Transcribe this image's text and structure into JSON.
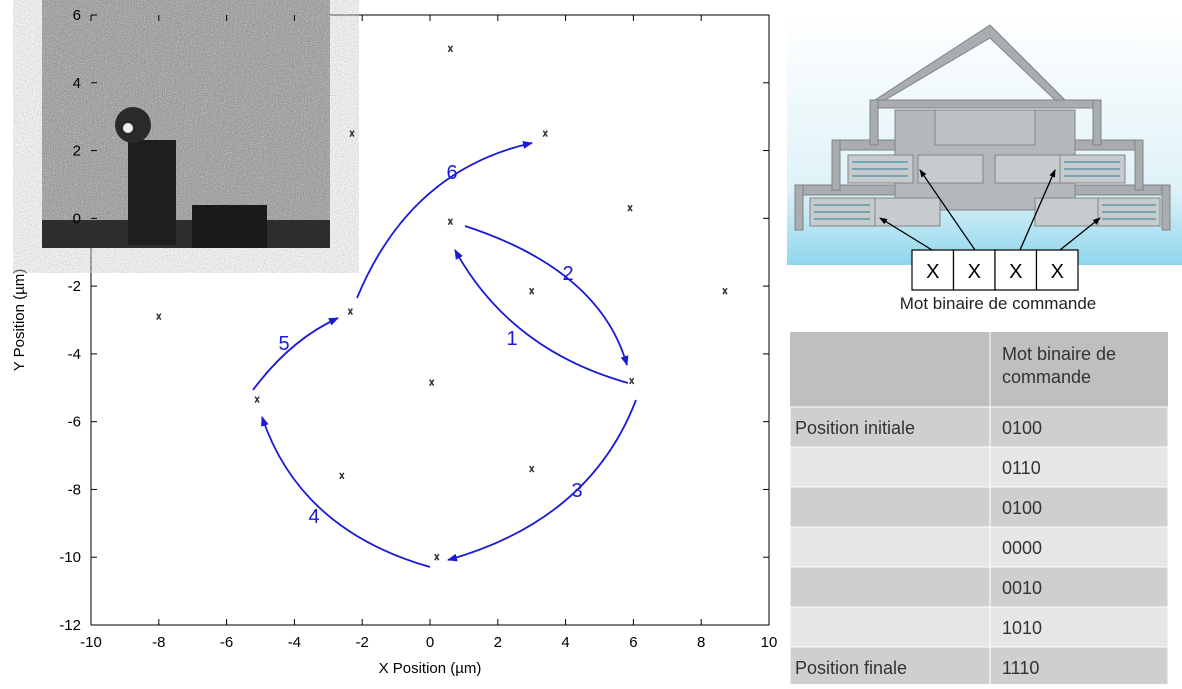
{
  "chart_data": {
    "type": "scatter",
    "xlabel": "X Position (µm)",
    "ylabel": "Y Position (µm)",
    "x": [
      0.6,
      -2.3,
      3.4,
      0.6,
      5.9,
      8.7,
      3.0,
      -8.0,
      -2.35,
      5.95,
      0.05,
      -5.1,
      -2.6,
      3.0,
      0.2
    ],
    "values": [
      5.0,
      2.5,
      2.5,
      -0.1,
      0.3,
      -2.15,
      -2.15,
      -2.9,
      -2.75,
      -4.8,
      -4.85,
      -5.35,
      -7.6,
      -7.4,
      -10.0
    ],
    "color": "#333333",
    "xlim": [
      -10,
      10
    ],
    "ylim": [
      -12,
      6
    ],
    "xticks": [
      -10,
      -8,
      -6,
      -4,
      -2,
      0,
      2,
      4,
      6,
      8,
      10
    ],
    "yticks": [
      -12,
      -10,
      -8,
      -6,
      -4,
      -2,
      0,
      2,
      4,
      6
    ],
    "annotations": [
      "1",
      "2",
      "3",
      "4",
      "5",
      "6"
    ],
    "annotation_color": "#1a1ad8"
  },
  "diagram": {
    "bits": [
      "X",
      "X",
      "X",
      "X"
    ],
    "caption": "Mot binaire de commande"
  },
  "table": {
    "column": "Mot binaire de commande",
    "rows": [
      {
        "label": "Position initiale",
        "word": "0100"
      },
      {
        "word": "0110"
      },
      {
        "word": "0100"
      },
      {
        "word": "0000"
      },
      {
        "word": "0010"
      },
      {
        "word": "1010"
      },
      {
        "label": "Position finale",
        "word": "1110"
      }
    ]
  }
}
